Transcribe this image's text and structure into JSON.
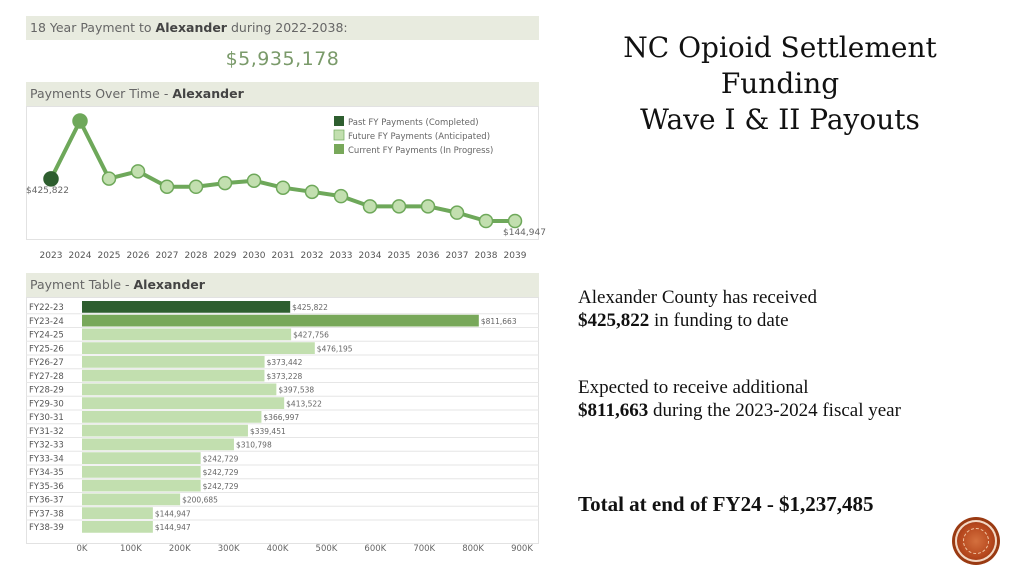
{
  "left": {
    "header1": {
      "prefix": "18 Year Payment to ",
      "name": "Alexander",
      "suffix": " during 2022-2038:"
    },
    "total_payment": "$5,935,178",
    "header2": {
      "prefix": "Payments Over Time - ",
      "name": "Alexander"
    },
    "header3": {
      "prefix": "Payment Table - ",
      "name": "Alexander"
    }
  },
  "title": {
    "line1": "NC Opioid Settlement",
    "line2": "Funding",
    "line3": "Wave I & II Payouts"
  },
  "paragraphs": {
    "p1_line1": "Alexander County has received",
    "p1_bold": "$425,822",
    "p1_rest": " in funding to date",
    "p2_line1": "Expected to receive additional",
    "p2_bold": "$811,663",
    "p2_rest": " during the 2023-2024 fiscal year",
    "p3": "Total at end of FY24 - $1,237,485"
  },
  "colors": {
    "past": "#2e5e2f",
    "future": "#c2dfaf",
    "current": "#78a85a",
    "line": "#6ea85a"
  },
  "chart_data": [
    {
      "type": "line",
      "title": "Payments Over Time - Alexander",
      "x": [
        "2023",
        "2024",
        "2025",
        "2026",
        "2027",
        "2028",
        "2029",
        "2030",
        "2031",
        "2032",
        "2033",
        "2034",
        "2035",
        "2036",
        "2037",
        "2038",
        "2039"
      ],
      "values": [
        425822,
        811663,
        427756,
        476195,
        373442,
        373228,
        397538,
        413522,
        366997,
        339451,
        310798,
        242729,
        242729,
        242729,
        200685,
        144947,
        144947
      ],
      "point_status": [
        "past",
        "current",
        "future",
        "future",
        "future",
        "future",
        "future",
        "future",
        "future",
        "future",
        "future",
        "future",
        "future",
        "future",
        "future",
        "future",
        "future"
      ],
      "end_labels": {
        "first": "$425,822",
        "last": "$144,947"
      },
      "legend": [
        {
          "label": "Past FY Payments (Completed)",
          "status": "past"
        },
        {
          "label": "Future FY Payments (Anticipated)",
          "status": "future"
        },
        {
          "label": "Current FY Payments (In Progress)",
          "status": "current"
        }
      ],
      "legend_position": "top-right",
      "grid": false
    },
    {
      "type": "bar",
      "orientation": "horizontal",
      "title": "Payment Table - Alexander",
      "categories": [
        "FY22-23",
        "FY23-24",
        "FY24-25",
        "FY25-26",
        "FY26-27",
        "FY27-28",
        "FY28-29",
        "FY29-30",
        "FY30-31",
        "FY31-32",
        "FY32-33",
        "FY33-34",
        "FY34-35",
        "FY35-36",
        "FY36-37",
        "FY37-38",
        "FY38-39"
      ],
      "values": [
        425822,
        811663,
        427756,
        476195,
        373442,
        373228,
        397538,
        413522,
        366997,
        339451,
        310798,
        242729,
        242729,
        242729,
        200685,
        144947,
        144947
      ],
      "labels": [
        "$425,822",
        "$811,663",
        "$427,756",
        "$476,195",
        "$373,442",
        "$373,228",
        "$397,538",
        "$413,522",
        "$366,997",
        "$339,451",
        "$310,798",
        "$242,729",
        "$242,729",
        "$242,729",
        "$200,685",
        "$144,947",
        "$144,947"
      ],
      "status": [
        "past",
        "current",
        "future",
        "future",
        "future",
        "future",
        "future",
        "future",
        "future",
        "future",
        "future",
        "future",
        "future",
        "future",
        "future",
        "future",
        "future"
      ],
      "xlim": [
        0,
        900000
      ],
      "xticks": [
        "0K",
        "100K",
        "200K",
        "300K",
        "400K",
        "500K",
        "600K",
        "700K",
        "800K",
        "900K"
      ]
    }
  ]
}
